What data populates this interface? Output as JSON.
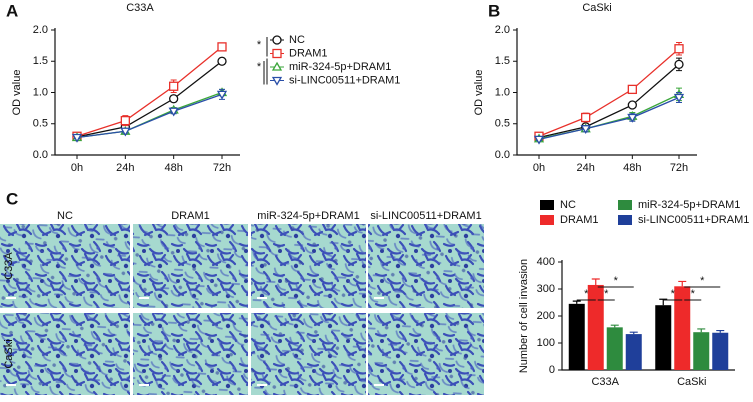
{
  "chart_data": [
    {
      "panel": "A",
      "type": "line",
      "title": "C33A",
      "y_label": "OD value",
      "categories": [
        "0h",
        "24h",
        "48h",
        "72h"
      ],
      "ylim": [
        0,
        2.0
      ],
      "yticks": [
        {
          "value": 0,
          "label": "0.0"
        },
        0.5,
        {
          "value": 1,
          "label": "1.0"
        },
        1.5,
        {
          "value": 2,
          "label": "2.0"
        }
      ],
      "legend": true,
      "annotations": [
        "*",
        "*"
      ],
      "series": [
        {
          "name": "NC",
          "color": "#111111",
          "marker": "circle",
          "values": [
            0.29,
            0.45,
            0.9,
            1.5
          ],
          "errors": [
            0.02,
            0.05,
            0.05,
            0.05
          ]
        },
        {
          "name": "DRAM1",
          "color": "#e8302a",
          "marker": "square",
          "values": [
            0.3,
            0.55,
            1.1,
            1.73
          ],
          "errors": [
            0.03,
            0.08,
            0.1,
            0.06
          ]
        },
        {
          "name": "miR-324-5p+DRAM1",
          "color": "#3aa63a",
          "marker": "triangle-up",
          "values": [
            0.28,
            0.38,
            0.72,
            1.0
          ],
          "errors": [
            0.02,
            0.04,
            0.04,
            0.05
          ]
        },
        {
          "name": "si-LINC00511+DRAM1",
          "color": "#2a4fa8",
          "marker": "triangle-down",
          "values": [
            0.28,
            0.38,
            0.7,
            0.97
          ],
          "errors": [
            0.02,
            0.03,
            0.04,
            0.08
          ]
        }
      ]
    },
    {
      "panel": "B",
      "type": "line",
      "title": "CaSki",
      "y_label": "OD value",
      "categories": [
        "0h",
        "24h",
        "48h",
        "72h"
      ],
      "ylim": [
        0,
        2.0
      ],
      "yticks": [
        {
          "value": 0,
          "label": "0.0"
        },
        0.5,
        {
          "value": 1,
          "label": "1.0"
        },
        1.5,
        {
          "value": 2,
          "label": "2.0"
        }
      ],
      "legend": false,
      "series": [
        {
          "color": "#111111",
          "marker": "circle",
          "values": [
            0.28,
            0.45,
            0.8,
            1.45
          ],
          "errors": [
            0.02,
            0.05,
            0.03,
            0.1
          ]
        },
        {
          "color": "#e8302a",
          "marker": "square",
          "values": [
            0.3,
            0.6,
            1.05,
            1.7
          ],
          "errors": [
            0.03,
            0.07,
            0.05,
            0.1
          ]
        },
        {
          "color": "#3aa63a",
          "marker": "triangle-up",
          "values": [
            0.26,
            0.42,
            0.62,
            0.97
          ],
          "errors": [
            0.02,
            0.05,
            0.06,
            0.1
          ]
        },
        {
          "color": "#2a4fa8",
          "marker": "triangle-down",
          "values": [
            0.25,
            0.42,
            0.6,
            0.92
          ],
          "errors": [
            0.02,
            0.05,
            0.06,
            0.08
          ]
        }
      ]
    },
    {
      "type": "bar",
      "y_label": "Number of cell invasion",
      "categories": [
        "C33A",
        "CaSki"
      ],
      "ylim": [
        0,
        400
      ],
      "yticks": [
        0,
        100,
        200,
        300,
        400
      ],
      "legend": true,
      "annotations": [
        "*",
        "*",
        "*",
        "*",
        "*",
        "*"
      ],
      "series": [
        {
          "name": "NC",
          "color": "#000000",
          "values": [
            245,
            240
          ],
          "errors": [
            10,
            22
          ]
        },
        {
          "name": "DRAM1",
          "color": "#ee2a2a",
          "values": [
            315,
            310
          ],
          "errors": [
            22,
            18
          ]
        },
        {
          "name": "miR-324-5p+DRAM1",
          "color": "#2e8b3e",
          "values": [
            158,
            140
          ],
          "errors": [
            8,
            12
          ]
        },
        {
          "name": "si-LINC00511+DRAM1",
          "color": "#1f3f9a",
          "values": [
            133,
            138
          ],
          "errors": [
            7,
            8
          ]
        }
      ]
    }
  ],
  "micrographs": {
    "panel": "C",
    "columns": [
      "NC",
      "DRAM1",
      "miR-324-5p+DRAM1",
      "si-LINC00511+DRAM1"
    ],
    "rows": [
      "C33A",
      "CaSki"
    ]
  }
}
